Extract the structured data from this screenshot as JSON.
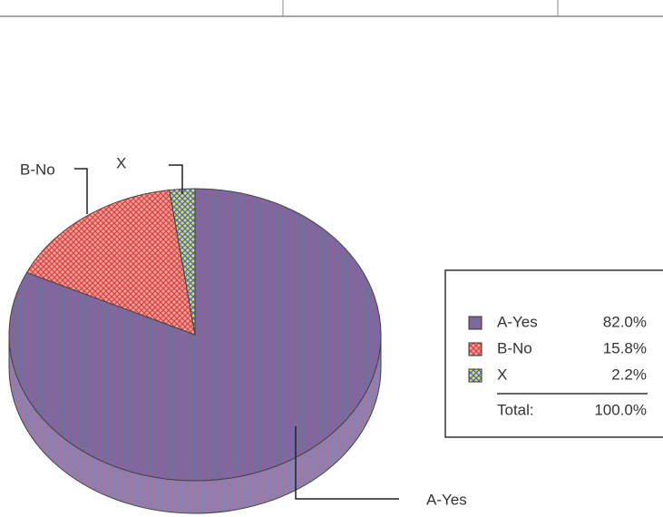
{
  "chart_data": {
    "type": "pie",
    "categories": [
      "A-Yes",
      "B-No",
      "X"
    ],
    "values": [
      82.0,
      15.8,
      2.2
    ],
    "value_labels": [
      "82.0%",
      "15.8%",
      "2.2%"
    ],
    "colors": [
      "#6b6fae",
      "#f2a290",
      "#e6d85c"
    ],
    "total_label": "Total:",
    "total": 100,
    "total_value_label": "100.0%",
    "legend": "right"
  }
}
